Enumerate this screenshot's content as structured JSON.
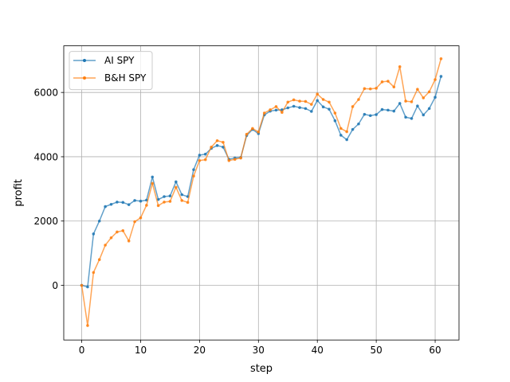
{
  "chart_data": {
    "type": "line",
    "title": "",
    "xlabel": "step",
    "ylabel": "profit",
    "xlim": [
      -3.05,
      64.05
    ],
    "ylim": [
      -1700,
      7450
    ],
    "xticks": [
      0,
      10,
      20,
      30,
      40,
      50,
      60
    ],
    "yticks": [
      0,
      2000,
      4000,
      6000
    ],
    "grid": true,
    "legend": "top-left",
    "series": [
      {
        "name": "AI SPY",
        "color": "#1f77b4",
        "values": [
          0,
          -50,
          1600,
          2000,
          2450,
          2520,
          2590,
          2580,
          2510,
          2640,
          2620,
          2650,
          3370,
          2670,
          2760,
          2780,
          3220,
          2820,
          2760,
          3600,
          4050,
          4080,
          4260,
          4350,
          4300,
          3920,
          3960,
          3980,
          4660,
          4850,
          4720,
          5300,
          5420,
          5450,
          5460,
          5520,
          5570,
          5530,
          5500,
          5410,
          5750,
          5550,
          5480,
          5120,
          4670,
          4530,
          4850,
          5020,
          5320,
          5280,
          5310,
          5470,
          5450,
          5420,
          5660,
          5230,
          5190,
          5580,
          5300,
          5500,
          5850,
          6500
        ]
      },
      {
        "name": "B&H SPY",
        "color": "#ff7f0e",
        "values": [
          0,
          -1250,
          400,
          800,
          1250,
          1480,
          1660,
          1700,
          1380,
          1980,
          2100,
          2490,
          3170,
          2480,
          2590,
          2610,
          3050,
          2640,
          2580,
          3400,
          3880,
          3910,
          4300,
          4500,
          4450,
          3880,
          3920,
          3960,
          4700,
          4880,
          4770,
          5360,
          5460,
          5560,
          5380,
          5700,
          5770,
          5730,
          5720,
          5630,
          5950,
          5780,
          5700,
          5360,
          4880,
          4780,
          5560,
          5780,
          6120,
          6110,
          6130,
          6330,
          6350,
          6170,
          6800,
          5730,
          5710,
          6100,
          5830,
          6020,
          6400,
          7050
        ]
      }
    ]
  }
}
